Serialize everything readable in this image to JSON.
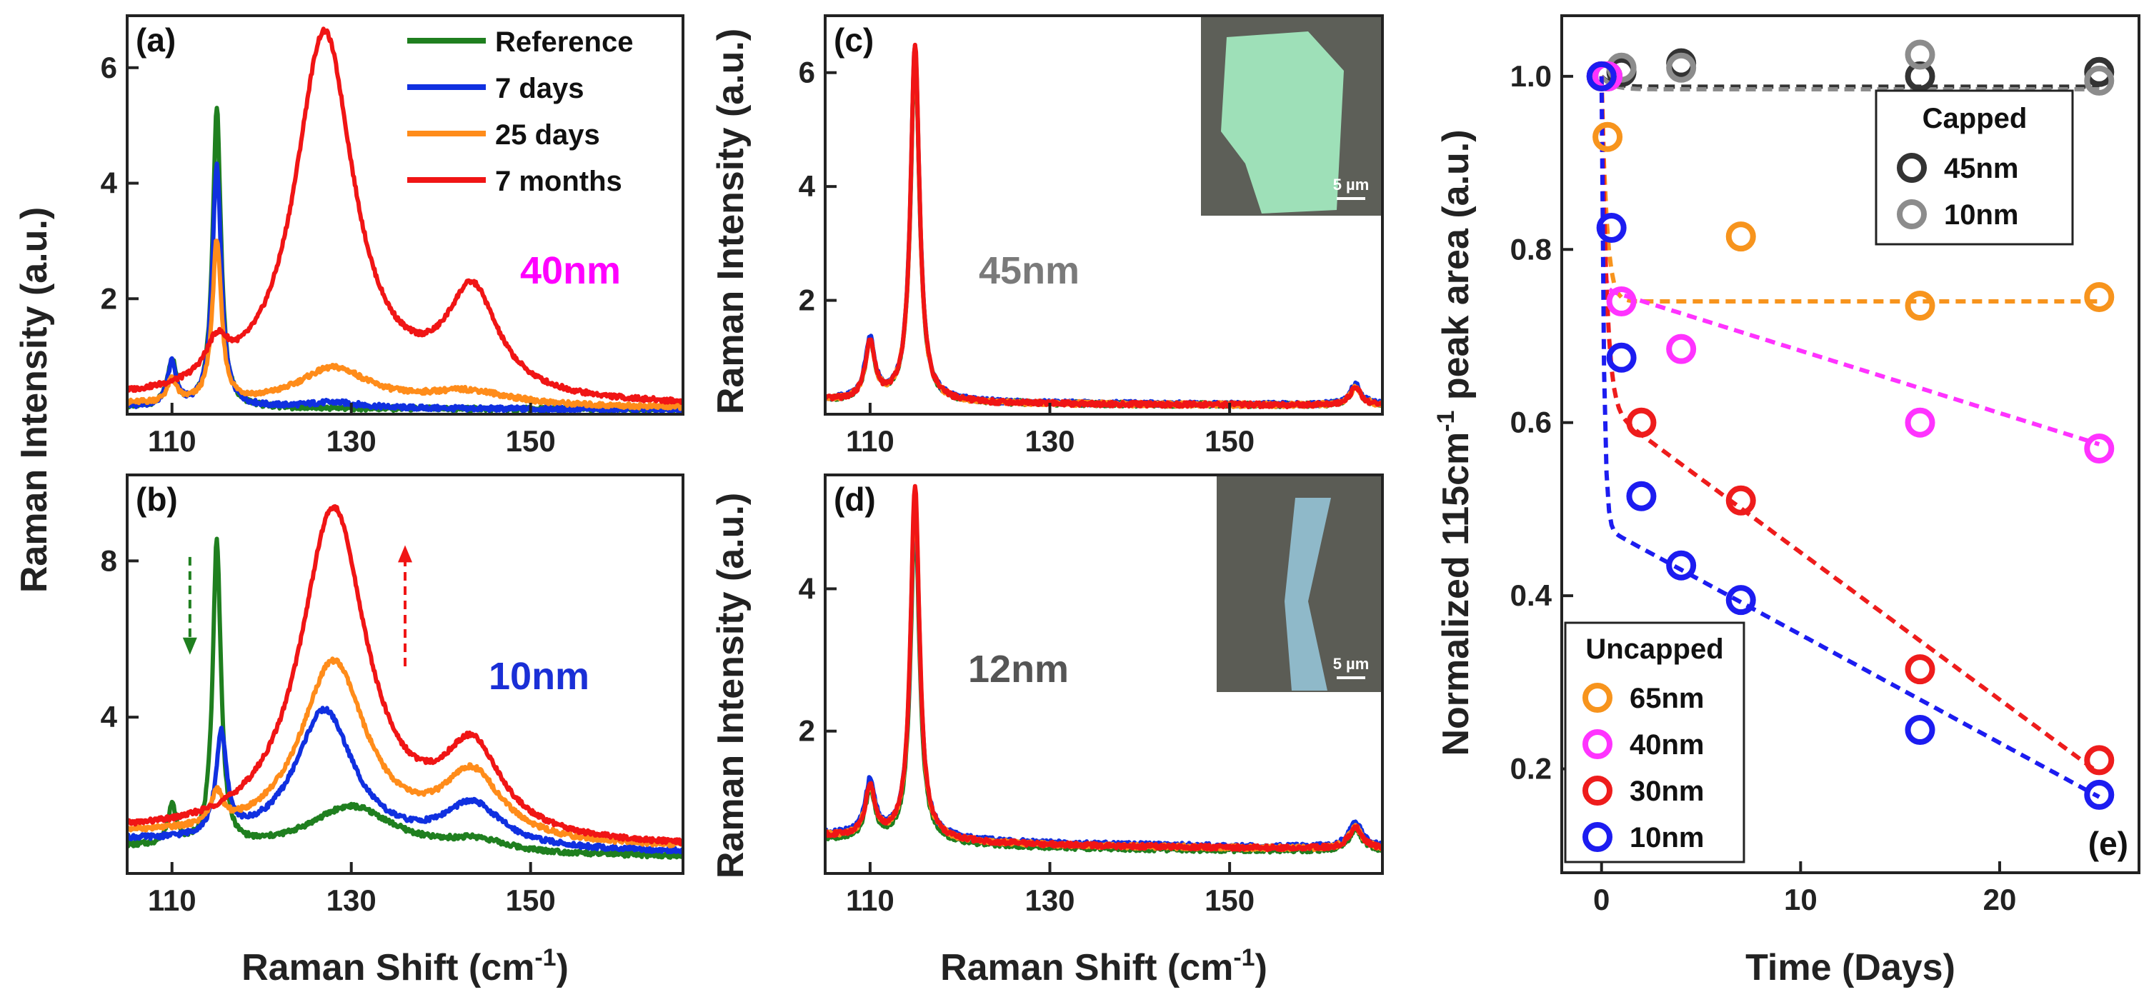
{
  "chart_data": [
    {
      "type": "line",
      "panel": "(a)",
      "annotation": "40nm",
      "annotation_color": "#ff00ff",
      "xlabel": "",
      "ylabel": "Raman Intensity (a.u.)",
      "xlim": [
        105,
        167
      ],
      "ylim": [
        0,
        6.9
      ],
      "xticks": [
        "110",
        "130",
        "150"
      ],
      "yticks": [
        "2",
        "4",
        "6"
      ],
      "legend": [
        "Reference",
        "7 days",
        "25 days",
        "7 months"
      ],
      "series": [
        {
          "name": "Reference",
          "color": "#1f7f1f",
          "peaks": [
            [
              110,
              0.8,
              0.6
            ],
            [
              115,
              5.2,
              0.55
            ]
          ],
          "baseline": 0.08
        },
        {
          "name": "7 days",
          "color": "#1030e0",
          "peaks": [
            [
              110,
              0.75,
              0.6
            ],
            [
              115,
              4.2,
              0.6
            ],
            [
              128,
              0.1,
              4
            ]
          ],
          "baseline": 0.08
        },
        {
          "name": "25 days",
          "color": "#ff8c1a",
          "peaks": [
            [
              110,
              0.4,
              0.6
            ],
            [
              115,
              2.8,
              0.6
            ],
            [
              128,
              0.65,
              5
            ],
            [
              143,
              0.25,
              6
            ]
          ],
          "baseline": 0.1
        },
        {
          "name": "7 months",
          "color": "#f01515",
          "peaks": [
            [
              115,
              0.6,
              1.5
            ],
            [
              127,
              6.4,
              4
            ],
            [
              143.5,
              1.8,
              3.5
            ]
          ],
          "baseline": 0.12
        }
      ]
    },
    {
      "type": "line",
      "panel": "(b)",
      "annotation": "10nm",
      "annotation_color": "#1a2fd6",
      "xlabel": "Raman Shift (cm-1)",
      "ylabel": "",
      "xlim": [
        105,
        167
      ],
      "ylim": [
        0,
        10.2
      ],
      "xticks": [
        "110",
        "130",
        "150"
      ],
      "yticks": [
        "4",
        "8"
      ],
      "series": [
        {
          "name": "Reference",
          "color": "#1f7f1f",
          "peaks": [
            [
              110,
              1.0,
              0.6
            ],
            [
              115,
              7.8,
              0.55
            ],
            [
              130,
              1.2,
              6
            ],
            [
              144,
              0.3,
              4
            ]
          ],
          "baseline": 0.4
        },
        {
          "name": "7 days",
          "color": "#1030e0",
          "peaks": [
            [
              115.5,
              2.6,
              0.7
            ],
            [
              127,
              3.5,
              4
            ],
            [
              143.5,
              1.1,
              4
            ]
          ],
          "baseline": 0.5
        },
        {
          "name": "25 days",
          "color": "#ff8c1a",
          "peaks": [
            [
              115,
              0.8,
              0.8
            ],
            [
              128,
              4.6,
              4.5
            ],
            [
              143.5,
              1.7,
              4
            ]
          ],
          "baseline": 0.6
        },
        {
          "name": "7 months",
          "color": "#f01515",
          "peaks": [
            [
              128,
              8.5,
              4.5
            ],
            [
              143.5,
              2.2,
              4
            ]
          ],
          "baseline": 0.6
        }
      ]
    },
    {
      "type": "line",
      "panel": "(c)",
      "annotation": "45nm",
      "annotation_color": "#7a7a7a",
      "inset_scale": "5 µm",
      "xlabel": "",
      "ylabel": "Raman Intensity (a.u.)",
      "xlim": [
        105,
        167
      ],
      "ylim": [
        0,
        7.0
      ],
      "xticks": [
        "110",
        "130",
        "150"
      ],
      "yticks": [
        "2",
        "4",
        "6"
      ],
      "series": [
        {
          "name": "Reference",
          "color": "#1f7f1f",
          "peaks": [
            [
              110,
              1.0,
              0.65
            ],
            [
              115,
              6.1,
              0.6
            ],
            [
              164,
              0.3,
              0.8
            ]
          ],
          "baseline": 0.15
        },
        {
          "name": "7 days",
          "color": "#1030e0",
          "peaks": [
            [
              110,
              1.05,
              0.65
            ],
            [
              115,
              6.2,
              0.6
            ],
            [
              164,
              0.35,
              0.8
            ]
          ],
          "baseline": 0.16
        },
        {
          "name": "25 days",
          "color": "#ff8c1a",
          "peaks": [
            [
              110,
              1.0,
              0.65
            ],
            [
              115,
              6.2,
              0.6
            ],
            [
              164,
              0.3,
              0.8
            ]
          ],
          "baseline": 0.15
        },
        {
          "name": "7 months",
          "color": "#f01515",
          "peaks": [
            [
              110,
              1.0,
              0.65
            ],
            [
              115,
              6.3,
              0.6
            ],
            [
              164,
              0.3,
              0.8
            ]
          ],
          "baseline": 0.15
        }
      ]
    },
    {
      "type": "line",
      "panel": "(d)",
      "annotation": "12nm",
      "annotation_color": "#555555",
      "inset_scale": "5 µm",
      "xlabel": "Raman Shift (cm-1)",
      "ylabel": "Raman Intensity (a.u.)",
      "xlim": [
        105,
        167
      ],
      "ylim": [
        0,
        5.6
      ],
      "xticks": [
        "110",
        "130",
        "150"
      ],
      "yticks": [
        "2",
        "4"
      ],
      "series": [
        {
          "name": "Reference",
          "color": "#1f7f1f",
          "peaks": [
            [
              110,
              0.7,
              0.65
            ],
            [
              115,
              4.6,
              0.6
            ],
            [
              164,
              0.3,
              0.9
            ]
          ],
          "baseline": 0.3
        },
        {
          "name": "7 days",
          "color": "#1030e0",
          "peaks": [
            [
              110,
              0.75,
              0.65
            ],
            [
              115,
              4.8,
              0.6
            ],
            [
              164,
              0.35,
              0.9
            ]
          ],
          "baseline": 0.35
        },
        {
          "name": "25 days",
          "color": "#ff8c1a",
          "peaks": [
            [
              110,
              0.7,
              0.65
            ],
            [
              115,
              4.9,
              0.6
            ],
            [
              164,
              0.3,
              0.9
            ]
          ],
          "baseline": 0.33
        },
        {
          "name": "7 months",
          "color": "#f01515",
          "peaks": [
            [
              110,
              0.7,
              0.65
            ],
            [
              115,
              5.0,
              0.6
            ],
            [
              164,
              0.3,
              0.9
            ]
          ],
          "baseline": 0.33
        }
      ]
    },
    {
      "type": "scatter",
      "panel": "(e)",
      "xlabel": "Time (Days)",
      "ylabel": "Normalized 115cm-1 peak area (a.u.)",
      "xlim": [
        -2,
        27
      ],
      "ylim": [
        0.08,
        1.07
      ],
      "xticks": [
        "0",
        "10",
        "20"
      ],
      "yticks": [
        "0.2",
        "0.4",
        "0.6",
        "0.8",
        "1.0"
      ],
      "legend_capped": {
        "title": "Capped",
        "entries": [
          "45nm",
          "10nm"
        ]
      },
      "legend_uncapped": {
        "title": "Uncapped",
        "entries": [
          "65nm",
          "40nm",
          "30nm",
          "10nm"
        ]
      },
      "series": [
        {
          "name": "Capped 45nm",
          "color": "#333333",
          "x": [
            0.3,
            1,
            4,
            16,
            25
          ],
          "y": [
            1.0,
            1.005,
            1.015,
            1.0,
            1.005
          ],
          "fit": [
            1.0,
            0.012,
            0.0,
            0.5
          ]
        },
        {
          "name": "Capped 10nm",
          "color": "#8c8c8c",
          "x": [
            0.3,
            1,
            4,
            16,
            25
          ],
          "y": [
            1.0,
            1.01,
            1.01,
            1.025,
            0.995
          ],
          "fit": [
            1.0,
            0.015,
            0.0,
            0.5
          ]
        },
        {
          "name": "Uncapped 65nm",
          "color": "#f7941d",
          "x": [
            0.3,
            7,
            16,
            25
          ],
          "y": [
            0.93,
            0.815,
            0.735,
            0.745
          ],
          "fit": [
            1.0,
            0.26,
            0.0,
            0.25
          ]
        },
        {
          "name": "Uncapped 40nm",
          "color": "#ff33ff",
          "x": [
            0.3,
            1,
            4,
            16,
            25
          ],
          "y": [
            1.0,
            0.74,
            0.685,
            0.6,
            0.57
          ],
          "fit": [
            1.0,
            0.245,
            0.0072,
            0.08
          ]
        },
        {
          "name": "Uncapped 30nm",
          "color": "#ee1c1c",
          "x": [
            0,
            2,
            7,
            16,
            25
          ],
          "y": [
            1.0,
            0.6,
            0.51,
            0.315,
            0.21
          ],
          "fit": [
            1.0,
            0.38,
            0.017,
            0.25
          ]
        },
        {
          "name": "Uncapped 10nm",
          "color": "#1c1cf0",
          "x": [
            0,
            0.5,
            1,
            2,
            4,
            7,
            16,
            25
          ],
          "y": [
            1.0,
            0.825,
            0.675,
            0.515,
            0.435,
            0.395,
            0.245,
            0.17
          ],
          "fit": [
            1.0,
            0.52,
            0.0125,
            0.12
          ]
        }
      ]
    }
  ]
}
